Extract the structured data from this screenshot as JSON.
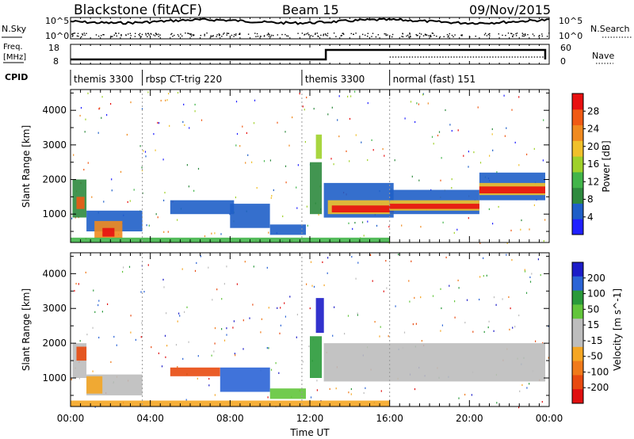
{
  "header": {
    "station": "Blackstone (fitACF)",
    "beam": "Beam 15",
    "date": "09/Nov/2015"
  },
  "side_labels": {
    "nsky": "N.Sky",
    "nsearch": "N.Search",
    "freq_line1": "Freq.",
    "freq_line2": "[MHz]",
    "nave": "Nave",
    "cpid": "CPID"
  },
  "noise_axis": {
    "left_top": "10^5",
    "left_bottom": "10^0",
    "right_top": "10^5",
    "right_bottom": "10^0"
  },
  "freq_axis": {
    "left_top": "18",
    "left_bottom": "8",
    "right_top": "60",
    "right_bottom": "0"
  },
  "cpid_segments": [
    {
      "label": "themis 3300",
      "start_h": 0.0,
      "end_h": 3.6
    },
    {
      "label": "rbsp CT-trig 220",
      "start_h": 3.6,
      "end_h": 11.6
    },
    {
      "label": "themis 3300",
      "start_h": 11.6,
      "end_h": 16.0
    },
    {
      "label": "normal (fast) 151",
      "start_h": 16.0,
      "end_h": 24.0
    }
  ],
  "colors": {
    "power_scale": [
      "#2020ff",
      "#1f5fc8",
      "#2e8a3e",
      "#42b54a",
      "#9fd12a",
      "#f0c02a",
      "#f08a1f",
      "#f05a14",
      "#e81010"
    ],
    "velocity_scale": [
      "#1c1cc8",
      "#2b64d6",
      "#2a9a3a",
      "#62c53b",
      "#bdbdbd",
      "#bdbdbd",
      "#f5a623",
      "#f07a1a",
      "#e84a10",
      "#e01010"
    ]
  },
  "chart_data": [
    {
      "type": "heatmap",
      "panel": "power",
      "xlabel": "",
      "ylabel": "Slant Range [km]",
      "xlim": [
        0,
        24
      ],
      "ylim": [
        180,
        4600
      ],
      "yticks": [
        "1000",
        "2000",
        "3000",
        "4000"
      ],
      "colorbar_label": "Power [dB]",
      "colorbar_ticks": [
        "4",
        "8",
        "12",
        "16",
        "20",
        "24",
        "28"
      ],
      "bands": [
        {
          "t0": 0.1,
          "t1": 0.8,
          "r0": 900,
          "r1": 2000,
          "level": 2
        },
        {
          "t0": 0.3,
          "t1": 0.7,
          "r0": 1150,
          "r1": 1500,
          "level": 7
        },
        {
          "t0": 0.8,
          "t1": 3.6,
          "r0": 500,
          "r1": 1100,
          "level": 1
        },
        {
          "t0": 1.2,
          "t1": 2.6,
          "r0": 300,
          "r1": 800,
          "level": 6
        },
        {
          "t0": 1.6,
          "t1": 2.2,
          "r0": 350,
          "r1": 600,
          "level": 8
        },
        {
          "t0": 5.0,
          "t1": 8.2,
          "r0": 1000,
          "r1": 1400,
          "level": 1
        },
        {
          "t0": 8.0,
          "t1": 10.0,
          "r0": 600,
          "r1": 1300,
          "level": 1
        },
        {
          "t0": 10.0,
          "t1": 11.8,
          "r0": 400,
          "r1": 700,
          "level": 1
        },
        {
          "t0": 12.0,
          "t1": 12.6,
          "r0": 1000,
          "r1": 2500,
          "level": 2
        },
        {
          "t0": 12.3,
          "t1": 12.6,
          "r0": 2600,
          "r1": 3300,
          "level": 4
        },
        {
          "t0": 12.7,
          "t1": 16.2,
          "r0": 900,
          "r1": 1900,
          "level": 1
        },
        {
          "t0": 12.9,
          "t1": 16.2,
          "r0": 1000,
          "r1": 1400,
          "level": 5
        },
        {
          "t0": 13.1,
          "t1": 16.2,
          "r0": 1050,
          "r1": 1250,
          "level": 8
        },
        {
          "t0": 16.0,
          "t1": 20.5,
          "r0": 1000,
          "r1": 1700,
          "level": 1
        },
        {
          "t0": 16.0,
          "t1": 20.5,
          "r0": 1100,
          "r1": 1400,
          "level": 5
        },
        {
          "t0": 16.0,
          "t1": 20.5,
          "r0": 1150,
          "r1": 1300,
          "level": 8
        },
        {
          "t0": 20.5,
          "t1": 23.8,
          "r0": 1400,
          "r1": 2200,
          "level": 1
        },
        {
          "t0": 20.5,
          "t1": 23.8,
          "r0": 1550,
          "r1": 1900,
          "level": 5
        },
        {
          "t0": 20.5,
          "t1": 23.8,
          "r0": 1600,
          "r1": 1800,
          "level": 8
        },
        {
          "t0": 0.0,
          "t1": 16.0,
          "r0": 180,
          "r1": 320,
          "level": 3
        }
      ]
    },
    {
      "type": "heatmap",
      "panel": "velocity",
      "xlabel": "Time UT",
      "ylabel": "Slant Range [km]",
      "xlim": [
        0,
        24
      ],
      "ylim": [
        180,
        4600
      ],
      "yticks": [
        "1000",
        "2000",
        "3000",
        "4000"
      ],
      "xticks": [
        "00:00",
        "04:00",
        "08:00",
        "12:00",
        "16:00",
        "20:00",
        "00:00"
      ],
      "colorbar_label": "Velocity [m s^-1]",
      "colorbar_ticks": [
        "200",
        "100",
        "50",
        "15",
        "-15",
        "-50",
        "-100",
        "-200"
      ],
      "bands": [
        {
          "t0": 0.1,
          "t1": 0.8,
          "r0": 1000,
          "r1": 2000,
          "level": 4
        },
        {
          "t0": 0.3,
          "t1": 0.8,
          "r0": 1500,
          "r1": 1900,
          "level": 8
        },
        {
          "t0": 0.8,
          "t1": 3.6,
          "r0": 500,
          "r1": 1100,
          "level": 4
        },
        {
          "t0": 0.8,
          "t1": 1.6,
          "r0": 550,
          "r1": 1050,
          "level": 6
        },
        {
          "t0": 5.0,
          "t1": 7.5,
          "r0": 1050,
          "r1": 1300,
          "level": 8
        },
        {
          "t0": 7.5,
          "t1": 10.0,
          "r0": 600,
          "r1": 1300,
          "level": 1
        },
        {
          "t0": 10.0,
          "t1": 11.8,
          "r0": 400,
          "r1": 700,
          "level": 3
        },
        {
          "t0": 12.3,
          "t1": 12.7,
          "r0": 2300,
          "r1": 3300,
          "level": 0
        },
        {
          "t0": 12.0,
          "t1": 12.6,
          "r0": 1000,
          "r1": 2200,
          "level": 2
        },
        {
          "t0": 12.7,
          "t1": 23.8,
          "r0": 900,
          "r1": 2000,
          "level": 4
        },
        {
          "t0": 0.0,
          "t1": 16.0,
          "r0": 180,
          "r1": 350,
          "level": 6
        }
      ]
    }
  ]
}
